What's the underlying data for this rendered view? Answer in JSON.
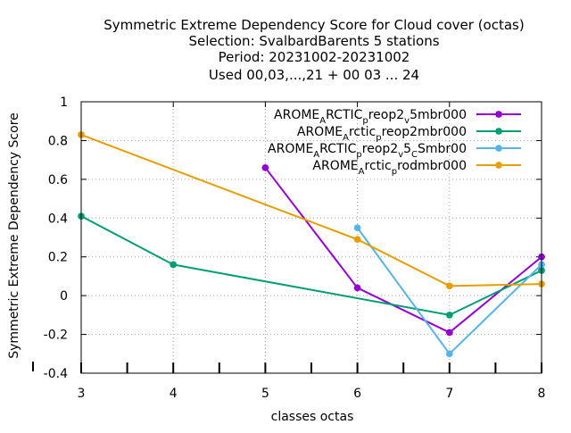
{
  "chart_data": {
    "type": "line",
    "title_lines": [
      "Symmetric Extreme Dependency Score  for Cloud cover (octas)",
      "Selection: SvalbardBarents       5 stations",
      "Period: 20231002-20231002",
      "Used  00,03,...,21  + 00 03 ... 24"
    ],
    "xlabel": "classes octas",
    "ylabel": "Symmetric Extreme Dependency Score",
    "xlim": [
      3,
      8
    ],
    "ylim": [
      -0.4,
      1
    ],
    "x_ticks": [
      3,
      4,
      5,
      6,
      7,
      8
    ],
    "x_tick_labels": [
      "3",
      "4",
      "5",
      "6",
      "7",
      "8"
    ],
    "y_ticks": [
      -0.4,
      -0.2,
      0,
      0.2,
      0.4,
      0.6,
      0.8,
      1
    ],
    "y_tick_labels": [
      "-0.4",
      "-0.2",
      "0",
      "0.2",
      "0.4",
      "0.6",
      "0.8",
      "1"
    ],
    "grid": true,
    "legend_position": "top-right",
    "series": [
      {
        "name": "AROME_ARCTIC_preop2_v5mbr000",
        "legend_parts": [
          [
            "AROME",
            ""
          ],
          [
            "A",
            "sub"
          ],
          [
            "RCTIC",
            ""
          ],
          [
            "p",
            "sub"
          ],
          [
            "reop2",
            ""
          ],
          [
            "v",
            "sub"
          ],
          [
            "5mbr000",
            ""
          ]
        ],
        "color": "#9400d3",
        "x": [
          5,
          6,
          7,
          8
        ],
        "y": [
          0.66,
          0.04,
          -0.19,
          0.2
        ]
      },
      {
        "name": "AROME_Arctic_preop2mbr000",
        "legend_parts": [
          [
            "AROME",
            ""
          ],
          [
            "A",
            "sub"
          ],
          [
            "rctic",
            ""
          ],
          [
            "p",
            "sub"
          ],
          [
            "reop2mbr000",
            ""
          ]
        ],
        "color": "#009e73",
        "x": [
          3,
          4,
          7,
          8
        ],
        "y": [
          0.41,
          0.16,
          -0.1,
          0.13
        ]
      },
      {
        "name": "AROME_ARCTIC_preop2_v5_CSmbr00",
        "legend_parts": [
          [
            "AROME",
            ""
          ],
          [
            "A",
            "sub"
          ],
          [
            "RCTIC",
            ""
          ],
          [
            "p",
            "sub"
          ],
          [
            "reop2",
            ""
          ],
          [
            "v",
            "sub"
          ],
          [
            "5",
            ""
          ],
          [
            "C",
            "sub"
          ],
          [
            "Smbr00",
            ""
          ]
        ],
        "color": "#56b4e9",
        "x": [
          6,
          7,
          8
        ],
        "y": [
          0.35,
          -0.3,
          0.16
        ]
      },
      {
        "name": "AROME_Arctic_prodmbr000",
        "legend_parts": [
          [
            "AROME",
            ""
          ],
          [
            "A",
            "sub"
          ],
          [
            "rctic",
            ""
          ],
          [
            "p",
            "sub"
          ],
          [
            "rodmbr000",
            ""
          ]
        ],
        "color": "#e69f00",
        "x": [
          3,
          6,
          7,
          8
        ],
        "y": [
          0.83,
          0.29,
          0.05,
          0.06
        ]
      }
    ]
  }
}
